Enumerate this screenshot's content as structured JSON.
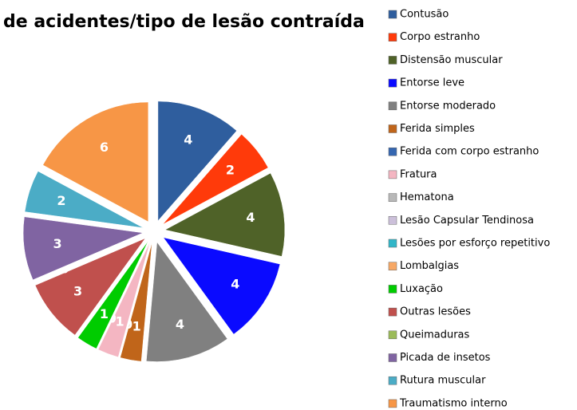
{
  "chart_data": {
    "type": "pie",
    "title": "de acidentes/tipo de lesão contraída",
    "categories": [
      "Contusão",
      "Corpo estranho",
      "Distensão muscular",
      "Entorse leve",
      "Entorse moderado",
      "Ferida simples",
      "Ferida com corpo estranho",
      "Fratura",
      "Hematona",
      "Lesão Capsular Tendinosa",
      "Lesões por esforço repetitivo",
      "Lombalgias",
      "Luxação",
      "Outras lesões",
      "Queimaduras",
      "Picada de insetos",
      "Rutura muscular",
      "Traumatismo interno"
    ],
    "values": [
      4,
      2,
      4,
      4,
      4,
      1,
      0,
      1,
      0,
      0,
      0,
      0,
      1,
      3,
      0,
      3,
      2,
      6
    ],
    "colors": [
      "#2f5e9e",
      "#ff3a0a",
      "#4f6228",
      "#0a0aff",
      "#808080",
      "#c0651a",
      "#3566b0",
      "#f4b6c2",
      "#b8b8b8",
      "#ccc0da",
      "#31b6c8",
      "#f7a866",
      "#00cc00",
      "#c0504d",
      "#9bbb59",
      "#8064a2",
      "#4bacc6",
      "#f79646"
    ],
    "legend": "right"
  }
}
